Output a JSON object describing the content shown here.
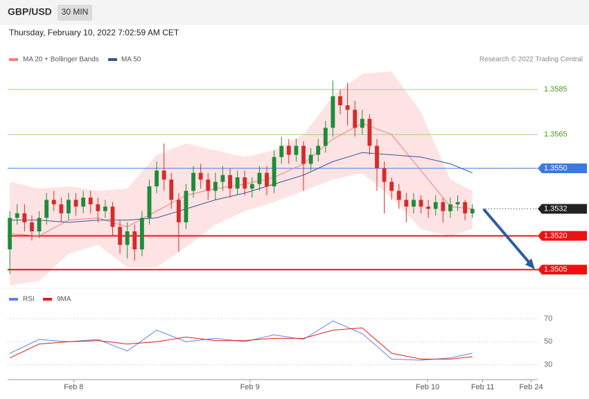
{
  "chart_data": {
    "type": "candlestick",
    "symbol": "GBP/USD",
    "interval": "30 MIN",
    "timestamp": "Thursday, February 10, 2022 7:02:59 AM CET",
    "credit": "Research © 2022 Trading Central",
    "ylim": [
      1.3498,
      1.3594
    ],
    "xlim": [
      -0.3,
      71.9
    ],
    "xticks": [
      {
        "value": 8.7,
        "label": "Feb 8"
      },
      {
        "value": 32.7,
        "label": "Feb 9"
      },
      {
        "value": 56.9,
        "label": "Feb 10"
      },
      {
        "value": 64.4,
        "label": "Feb 11"
      },
      {
        "value": 71.0,
        "label": "Feb 24"
      }
    ],
    "up_color": "#1e8c3a",
    "down_color": "#d62b2b",
    "open": [
      1.3514,
      1.3528,
      1.353,
      1.3526,
      1.3522,
      1.3528,
      1.3536,
      1.3534,
      1.353,
      1.3536,
      1.3533,
      1.3537,
      1.3534,
      1.3531,
      1.3533,
      1.3524,
      1.3516,
      1.3522,
      1.3514,
      1.3528,
      1.3542,
      1.3549,
      1.3545,
      1.3536,
      1.3526,
      1.354,
      1.3548,
      1.3545,
      1.354,
      1.3544,
      1.3547,
      1.3541,
      1.3546,
      1.3541,
      1.3543,
      1.3548,
      1.3542,
      1.3555,
      1.356,
      1.3556,
      1.356,
      1.3552,
      1.3556,
      1.356,
      1.3568,
      1.3582,
      1.3578,
      1.3576,
      1.3568,
      1.3572,
      1.356,
      1.355,
      1.3544,
      1.354,
      1.3536,
      1.3533,
      1.3536,
      1.3533,
      1.3532,
      1.3535,
      1.3531,
      1.3534,
      1.3535,
      1.353
    ],
    "high": [
      1.3531,
      1.3534,
      1.3534,
      1.3529,
      1.3531,
      1.3539,
      1.354,
      1.3537,
      1.3539,
      1.3539,
      1.354,
      1.354,
      1.3537,
      1.3536,
      1.3535,
      1.3527,
      1.3526,
      1.3525,
      1.3531,
      1.3545,
      1.3553,
      1.3561,
      1.3548,
      1.3539,
      1.3543,
      1.3551,
      1.3552,
      1.3548,
      1.3548,
      1.3551,
      1.355,
      1.3549,
      1.3549,
      1.3546,
      1.3551,
      1.3551,
      1.3558,
      1.3564,
      1.3563,
      1.3563,
      1.3562,
      1.3559,
      1.3563,
      1.3571,
      1.3589,
      1.3585,
      1.3588,
      1.358,
      1.3576,
      1.3574,
      1.3563,
      1.3553,
      1.3546,
      1.3543,
      1.3539,
      1.3539,
      1.3538,
      1.3536,
      1.3538,
      1.3537,
      1.3537,
      1.3538,
      1.3536,
      1.3534
    ],
    "low": [
      1.3503,
      1.3525,
      1.3522,
      1.3518,
      1.3519,
      1.3525,
      1.3531,
      1.3526,
      1.3527,
      1.3529,
      1.353,
      1.353,
      1.3526,
      1.3528,
      1.352,
      1.3512,
      1.351,
      1.3509,
      1.3511,
      1.3525,
      1.3539,
      1.354,
      1.3532,
      1.3513,
      1.3523,
      1.3537,
      1.3541,
      1.3536,
      1.3536,
      1.354,
      1.3537,
      1.3538,
      1.3538,
      1.3537,
      1.354,
      1.3538,
      1.3539,
      1.3552,
      1.3552,
      1.3553,
      1.354,
      1.3549,
      1.3553,
      1.3557,
      1.3564,
      1.3574,
      1.3569,
      1.3564,
      1.3565,
      1.3556,
      1.354,
      1.353,
      1.3536,
      1.3532,
      1.3526,
      1.353,
      1.353,
      1.3528,
      1.3529,
      1.3526,
      1.3528,
      1.3531,
      1.3527,
      1.3528
    ],
    "close": [
      1.3528,
      1.353,
      1.3526,
      1.3522,
      1.3528,
      1.3536,
      1.3534,
      1.353,
      1.3536,
      1.3533,
      1.3537,
      1.3534,
      1.3531,
      1.3533,
      1.3524,
      1.3516,
      1.3522,
      1.3514,
      1.3528,
      1.3542,
      1.3549,
      1.3545,
      1.3536,
      1.3526,
      1.354,
      1.3548,
      1.3545,
      1.354,
      1.3544,
      1.3547,
      1.3541,
      1.3546,
      1.3541,
      1.3543,
      1.3548,
      1.3542,
      1.3555,
      1.356,
      1.3556,
      1.356,
      1.3552,
      1.3556,
      1.356,
      1.3568,
      1.3582,
      1.3578,
      1.3576,
      1.3568,
      1.3572,
      1.356,
      1.355,
      1.3544,
      1.354,
      1.3536,
      1.3533,
      1.3536,
      1.3533,
      1.3532,
      1.3535,
      1.3531,
      1.3534,
      1.3535,
      1.353,
      1.3532
    ],
    "overlay_x": [
      0,
      4,
      8,
      12,
      16,
      20,
      24,
      28,
      32,
      36,
      40,
      44,
      48,
      52,
      56,
      60,
      63
    ],
    "bands": {
      "name": "MA 20 + Bollinger Bands",
      "color": "#f08080",
      "fill": "#fde3e3",
      "upper": [
        1.3544,
        1.3541,
        1.3542,
        1.354,
        1.3541,
        1.3556,
        1.3561,
        1.3558,
        1.3555,
        1.3558,
        1.3565,
        1.3582,
        1.3592,
        1.3593,
        1.3575,
        1.3545,
        1.354
      ],
      "middle": [
        1.3521,
        1.352,
        1.3527,
        1.3528,
        1.3524,
        1.3531,
        1.3538,
        1.3541,
        1.3543,
        1.3546,
        1.3552,
        1.3563,
        1.357,
        1.3565,
        1.3549,
        1.3533,
        1.3532
      ],
      "lower": [
        1.3498,
        1.35,
        1.3512,
        1.3516,
        1.3506,
        1.3506,
        1.3515,
        1.3525,
        1.3531,
        1.3535,
        1.354,
        1.3545,
        1.3548,
        1.3537,
        1.3523,
        1.352,
        1.3523
      ]
    },
    "ma50": {
      "name": "MA 50",
      "color": "#33559b",
      "values": [
        1.3527,
        1.3527,
        1.3526,
        1.3527,
        1.3527,
        1.3528,
        1.3532,
        1.3536,
        1.3539,
        1.3543,
        1.3547,
        1.3553,
        1.3557,
        1.3556,
        1.3555,
        1.3552,
        1.3548
      ]
    },
    "levels": [
      {
        "value": 1.3585,
        "label": "1.3585",
        "color": "#a5cf7f",
        "text_color": "#4a9a1a",
        "boxed": false
      },
      {
        "value": 1.3565,
        "label": "1.3565",
        "color": "#a5cf7f",
        "text_color": "#4a9a1a",
        "boxed": false
      },
      {
        "value": 1.355,
        "label": "1.3550",
        "color": "#3d78e0",
        "text_color": "#ffffff",
        "boxed": true
      },
      {
        "value": 1.3532,
        "label": "1.3532",
        "color": "#222222",
        "text_color": "#ffffff",
        "boxed": true
      },
      {
        "value": 1.352,
        "label": "1.3520",
        "color": "#ee1111",
        "text_color": "#ffffff",
        "boxed": true
      },
      {
        "value": 1.3505,
        "label": "1.3505",
        "color": "#ee1111",
        "text_color": "#ffffff",
        "boxed": true
      }
    ],
    "rsi_panel": {
      "ylim": [
        19,
        82
      ],
      "yticks": [
        30,
        50,
        70
      ],
      "series": [
        {
          "name": "RSI",
          "color": "#5b86e0",
          "values": [
            40,
            52,
            50,
            52,
            42,
            60,
            50,
            53,
            50,
            56,
            52,
            68,
            57,
            35,
            34,
            36,
            40
          ]
        },
        {
          "name": "9MA",
          "color": "#e31c1c",
          "values": [
            36,
            48,
            50,
            51,
            48,
            50,
            54,
            51,
            51,
            53,
            53,
            60,
            62,
            40,
            35,
            35,
            37
          ]
        }
      ]
    }
  }
}
